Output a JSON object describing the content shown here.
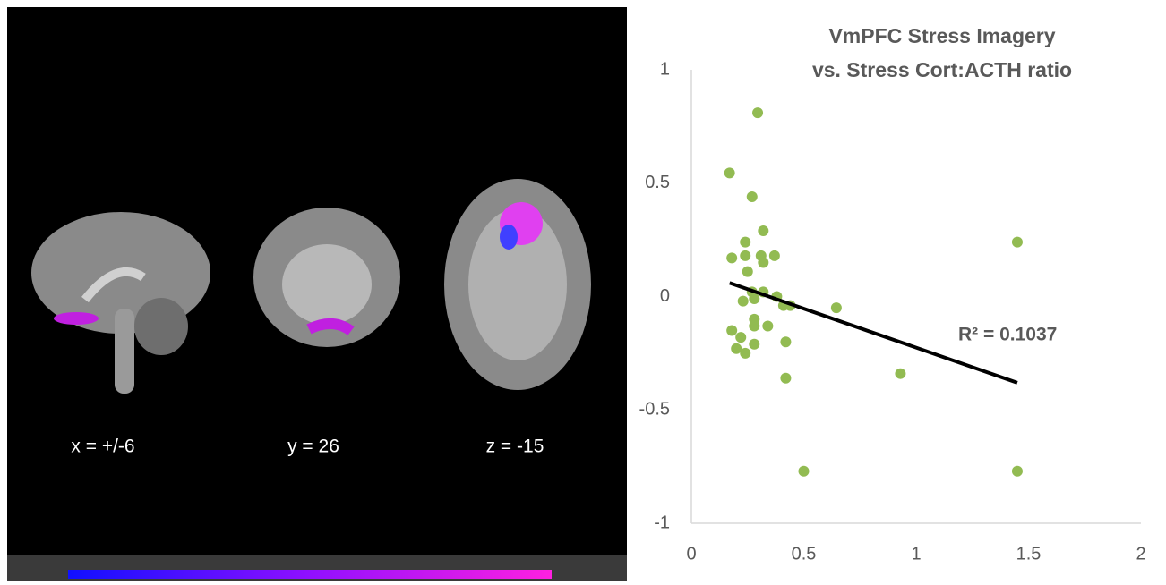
{
  "brain_panel": {
    "slice_labels": [
      "x = +/-6",
      "y = 26",
      "z = -15"
    ]
  },
  "chart_data": {
    "type": "scatter",
    "title": [
      "VmPFC Stress Imagery",
      "vs. Stress Cort:ACTH ratio"
    ],
    "annotation": "R² = 0.1037",
    "series": [
      {
        "color": "#92bb52",
        "x": [
          0.295,
          0.17,
          0.27,
          0.32,
          0.24,
          1.45,
          0.18,
          0.24,
          0.31,
          0.37,
          0.32,
          0.25,
          0.27,
          0.32,
          0.38,
          0.28,
          0.23,
          0.41,
          0.44,
          0.645,
          0.28,
          0.34,
          0.28,
          0.18,
          0.22,
          0.28,
          0.42,
          0.2,
          0.24,
          0.93,
          0.42,
          0.5,
          1.45
        ],
        "values": [
          0.81,
          0.545,
          0.44,
          0.29,
          0.24,
          0.24,
          0.17,
          0.18,
          0.18,
          0.18,
          0.15,
          0.11,
          0.02,
          0.02,
          0.0,
          -0.01,
          -0.02,
          -0.04,
          -0.04,
          -0.05,
          -0.1,
          -0.13,
          -0.13,
          -0.15,
          -0.18,
          -0.21,
          -0.2,
          -0.23,
          -0.25,
          -0.34,
          -0.36,
          -0.77,
          -0.77
        ]
      }
    ],
    "trendline": {
      "color": "#000000",
      "x": [
        0.17,
        1.45
      ],
      "values": [
        0.06,
        -0.38
      ]
    },
    "xlim": [
      0,
      2
    ],
    "xticks": [
      0,
      0.5,
      1,
      1.5,
      2
    ],
    "ylim": [
      -1,
      1
    ],
    "yticks": [
      -1,
      -0.5,
      0,
      0.5,
      1
    ],
    "grid": false
  }
}
